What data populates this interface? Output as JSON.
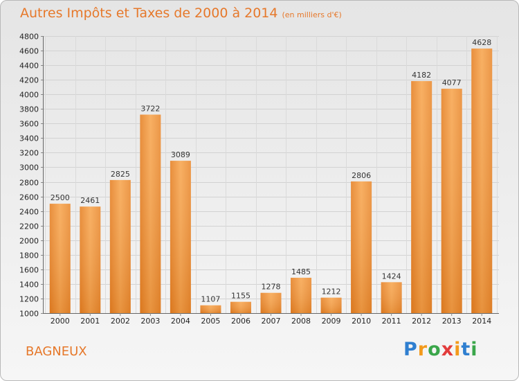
{
  "title": "Autres Impôts et Taxes de 2000 à 2014",
  "unit": "(en milliers d'€)",
  "city": "BAGNEUX",
  "logo": [
    "P",
    "r",
    "o",
    "x",
    "i",
    "t",
    "i"
  ],
  "colors": {
    "bar_light": "#f7a54e",
    "bar_dark": "#e07a1e",
    "accent": "#e6782a"
  },
  "chart_data": {
    "type": "bar",
    "categories": [
      "2000",
      "2001",
      "2002",
      "2003",
      "2004",
      "2005",
      "2006",
      "2007",
      "2008",
      "2009",
      "2010",
      "2011",
      "2012",
      "2013",
      "2014"
    ],
    "values": [
      2500,
      2461,
      2825,
      3722,
      3089,
      1107,
      1155,
      1278,
      1485,
      1212,
      2806,
      1424,
      4182,
      4077,
      4628
    ],
    "title": "Autres Impôts et Taxes de 2000 à 2014",
    "xlabel": "",
    "ylabel": "",
    "ylim": [
      1000,
      4800
    ],
    "yticks": [
      1000,
      1200,
      1400,
      1600,
      1800,
      2000,
      2200,
      2400,
      2600,
      2800,
      3000,
      3200,
      3400,
      3600,
      3800,
      4000,
      4200,
      4400,
      4600,
      4800
    ],
    "grid": true,
    "data_labels": true
  }
}
